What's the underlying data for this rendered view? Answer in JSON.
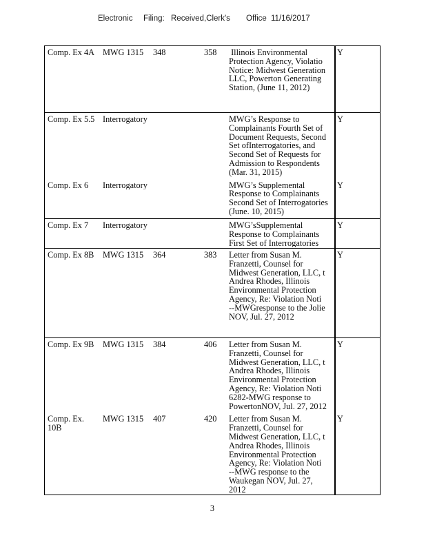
{
  "header": {
    "parts": [
      "Electronic",
      "Filing:",
      "Received,Clerk's",
      "Office",
      "11/16/2017"
    ],
    "line": "Electronic Filing: Received,Clerk's Office 11/16/2017"
  },
  "table": {
    "flag_column_value": "Y",
    "blocks": [
      {
        "entries": [
          {
            "exhibit": "Comp. Ex 4A",
            "document": "MWG 1315",
            "page_start": "348",
            "page_end": "358",
            "description_lines": [
              " Illinois Environmental",
              "Protection Agency, Violatio",
              "Notice: Midwest Generation",
              "LLC, Powerton Generating",
              "Station, (June 11, 2012)"
            ],
            "admitted": "Y"
          }
        ]
      },
      {
        "entries": [
          {
            "exhibit": "Comp. Ex 5.5",
            "document": "Interrogatory",
            "page_start": "",
            "page_end": "",
            "description_lines": [
              "MWG’s Response to",
              "Complainants Fourth Set of",
              "Document Requests, Second",
              "Set ofInterrogatories, and",
              "Second Set of Requests for",
              "Admission to Respondents",
              "(Mar. 31, 2015)"
            ],
            "admitted": "Y"
          },
          {
            "exhibit": "Comp. Ex 6",
            "document": "Interrogatory",
            "page_start": "",
            "page_end": "",
            "description_lines": [
              "MWG’s Supplemental",
              "Response to Complainants",
              "Second Set of Interrogatories",
              "(June. 10, 2015)"
            ],
            "admitted": "Y"
          }
        ]
      },
      {
        "entries": [
          {
            "exhibit": "Comp. Ex 7",
            "document": "Interrogatory",
            "page_start": "",
            "page_end": "",
            "description_lines": [
              "MWG’sSupplemental",
              "Response to Complainants",
              "First Set of Interrogatories"
            ],
            "admitted": "Y"
          }
        ]
      },
      {
        "entries": [
          {
            "exhibit": "Comp. Ex 8B",
            "document": "MWG 1315",
            "page_start": "364",
            "page_end": "383",
            "description_lines": [
              "Letter from Susan M.",
              "Franzetti, Counsel for",
              "Midwest Generation, LLC, t",
              "Andrea Rhodes, Illinois",
              "Environmental Protection",
              "Agency, Re: Violation Noti",
              "--MWGresponse to the Jolie",
              "NOV, Jul. 27, 2012"
            ],
            "admitted": "Y"
          }
        ]
      },
      {
        "entries": [
          {
            "exhibit": "Comp. Ex 9B",
            "document": "MWG 1315",
            "page_start": "384",
            "page_end": "406",
            "description_lines": [
              "Letter from Susan M.",
              "Franzetti, Counsel for",
              "Midwest Generation, LLC, t",
              "Andrea Rhodes, Illinois",
              "Environmental Protection",
              "Agency, Re: Violation Noti",
              "6282-MWG response to",
              "PowertonNOV, Jul. 27, 2012"
            ],
            "admitted": "Y"
          },
          {
            "exhibit": "Comp. Ex. 10B",
            "document": "MWG 1315",
            "page_start": "407",
            "page_end": "420",
            "description_lines": [
              "Letter from Susan M.",
              "Franzetti, Counsel for",
              "Midwest Generation, LLC, t",
              "Andrea Rhodes, Illinois",
              "Environmental Protection",
              "Agency, Re: Violation Noti",
              "--MWG response to the",
              "Waukegan NOV, Jul. 27,",
              "2012"
            ],
            "admitted": "Y"
          }
        ]
      }
    ]
  },
  "footer": {
    "page_number": "3"
  }
}
